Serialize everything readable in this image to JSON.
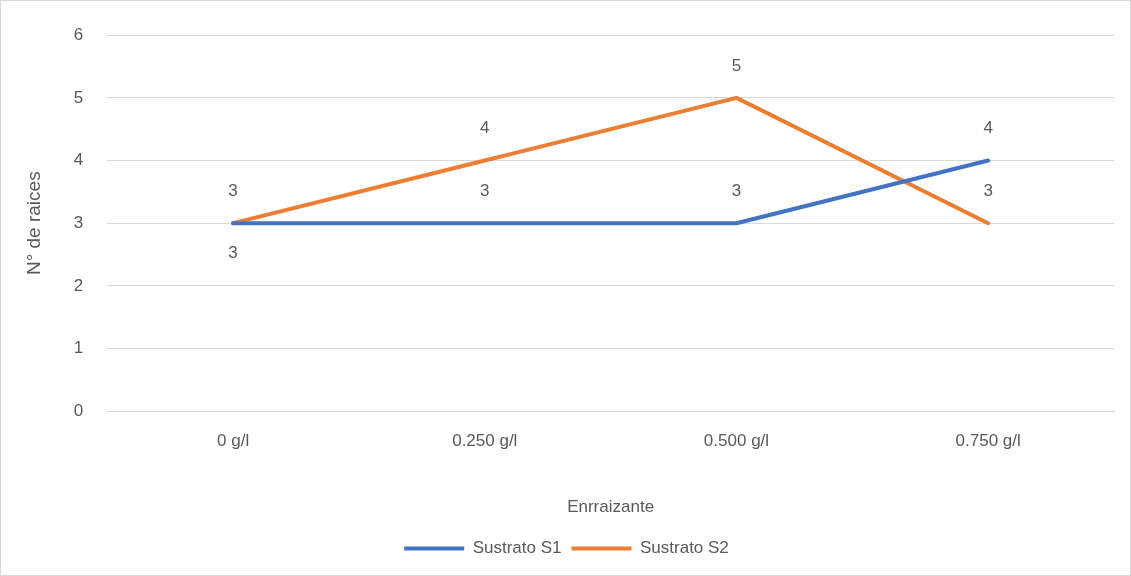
{
  "chart_data": {
    "type": "line",
    "xlabel": "Enrraizante",
    "ylabel": "N° de raices",
    "categories": [
      "0 g/l",
      "0.250 g/l",
      "0.500 g/l",
      "0.750 g/l"
    ],
    "series": [
      {
        "name": "Sustrato S1",
        "color": "#4472c4",
        "values": [
          3,
          3,
          3,
          4
        ]
      },
      {
        "name": "Sustrato S2",
        "color": "#ed7d31",
        "values": [
          3,
          4,
          5,
          3
        ]
      }
    ],
    "ylim": [
      0,
      6
    ],
    "yticks": [
      0,
      1,
      2,
      3,
      4,
      5,
      6
    ],
    "grid": "y",
    "legend": "bottom",
    "data_labels": true,
    "marker": "none",
    "line_style": "solid"
  }
}
